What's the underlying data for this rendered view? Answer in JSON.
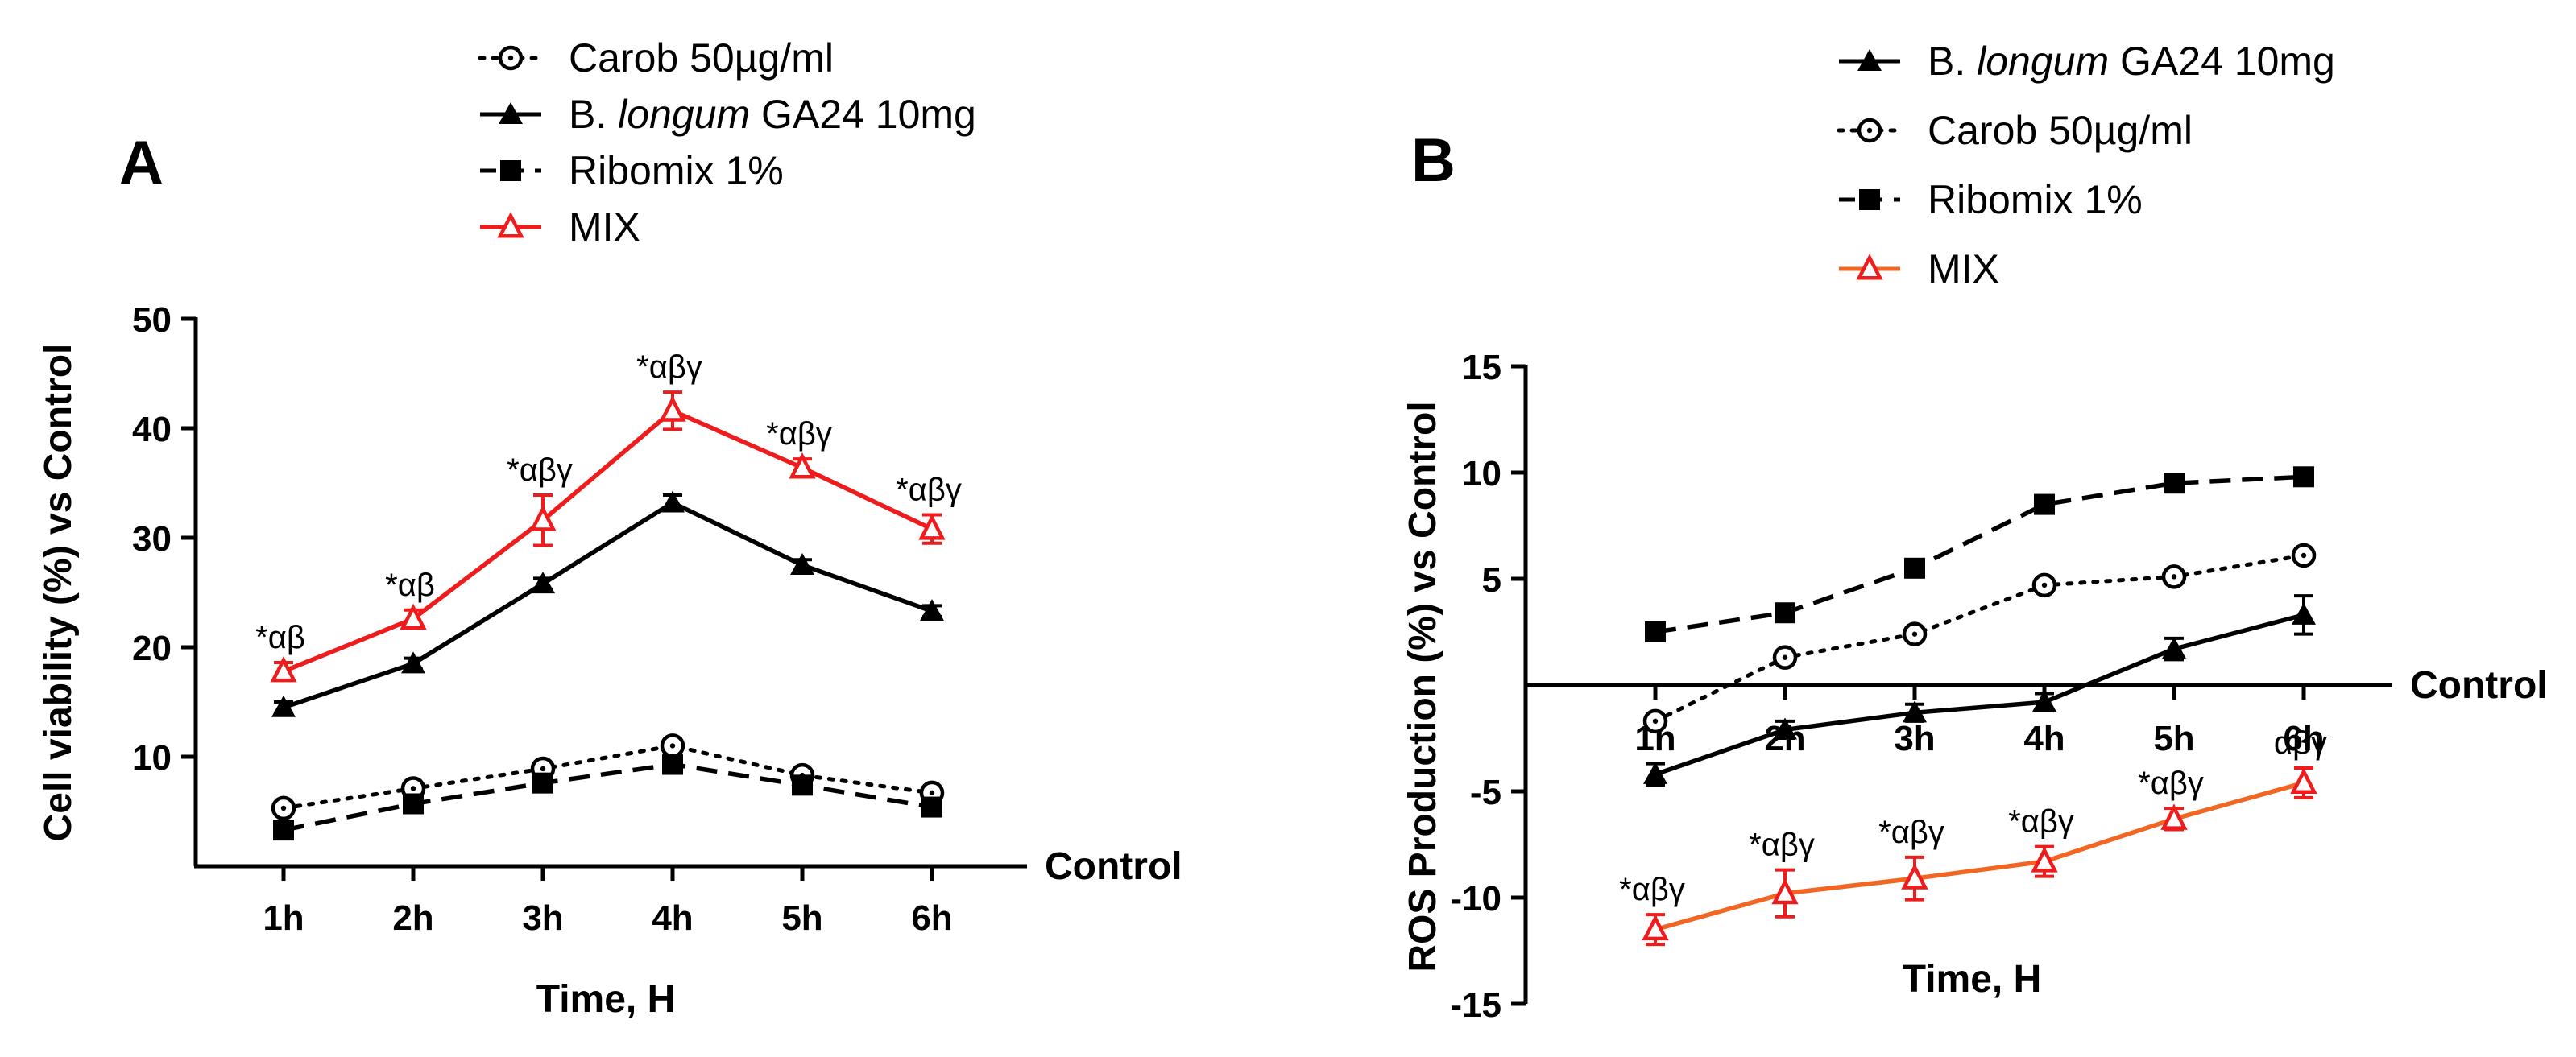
{
  "chart_data": [
    {
      "panel": "A",
      "type": "line",
      "xlabel": "Time, H",
      "ylabel": "Cell viability (%) vs Control",
      "baseline_label": "Control",
      "categories": [
        "1h",
        "2h",
        "3h",
        "4h",
        "5h",
        "6h"
      ],
      "ylim": [
        0,
        50
      ],
      "yticks": [
        "10",
        "20",
        "30",
        "40",
        "50"
      ],
      "yticks_values": [
        10,
        20,
        30,
        40,
        50
      ],
      "legend": {
        "placement": "top-center",
        "items": [
          {
            "name": "Carob 50µg/ml",
            "series": "carob"
          },
          {
            "name_pre": "B. ",
            "name_italic": "longum",
            "name_post": " GA24 10mg",
            "series": "longum"
          },
          {
            "name": "Ribomix 1%",
            "series": "ribomix"
          },
          {
            "name": "MIX",
            "series": "mix"
          }
        ]
      },
      "series": [
        {
          "id": "carob",
          "values": [
            5.3,
            7.1,
            8.9,
            11.0,
            8.3,
            6.7
          ],
          "errors": [
            0.5,
            0.5,
            0.5,
            0.6,
            0.5,
            0.5
          ],
          "marker": "circle",
          "dash": "dotted",
          "color": "#000000"
        },
        {
          "id": "longum",
          "values": [
            14.5,
            18.5,
            25.8,
            33.2,
            27.5,
            23.3
          ],
          "errors": [
            0.5,
            0.5,
            0.5,
            0.7,
            0.5,
            0.5
          ],
          "marker": "triangle",
          "dash": "solid",
          "color": "#000000"
        },
        {
          "id": "ribomix",
          "values": [
            3.3,
            5.7,
            7.6,
            9.3,
            7.4,
            5.4
          ],
          "errors": [
            0.5,
            0.5,
            0.5,
            0.5,
            0.5,
            0.5
          ],
          "marker": "square",
          "dash": "dashed",
          "color": "#000000"
        },
        {
          "id": "mix",
          "values": [
            17.8,
            22.6,
            31.6,
            41.6,
            36.4,
            30.8
          ],
          "errors": [
            0.8,
            0.8,
            2.3,
            1.7,
            0.8,
            1.3
          ],
          "marker": "triangle-open",
          "dash": "solid",
          "color": "#ee1c1c",
          "annotations": [
            "*αβ",
            "*αβ",
            "*αβγ",
            "*αβγ",
            "*αβγ",
            "*αβγ"
          ]
        }
      ]
    },
    {
      "panel": "B",
      "type": "line",
      "xlabel": "Time, H",
      "ylabel": "ROS Production (%) vs Control",
      "baseline_label": "Control",
      "categories": [
        "1h",
        "2h",
        "3h",
        "4h",
        "5h",
        "6h"
      ],
      "ylim": [
        -15,
        15
      ],
      "yticks": [
        "-15",
        "-10",
        "-5",
        "5",
        "10",
        "15"
      ],
      "yticks_values": [
        -15,
        -10,
        -5,
        5,
        10,
        15
      ],
      "legend": {
        "placement": "top-center",
        "items": [
          {
            "name_pre": "B. ",
            "name_italic": "longum",
            "name_post": " GA24 10mg",
            "series": "longum"
          },
          {
            "name": "Carob 50µg/ml",
            "series": "carob"
          },
          {
            "name": "Ribomix 1%",
            "series": "ribomix"
          },
          {
            "name": "MIX",
            "series": "mix"
          }
        ]
      },
      "series": [
        {
          "id": "longum",
          "values": [
            -4.2,
            -2.1,
            -1.3,
            -0.8,
            1.7,
            3.3
          ],
          "errors": [
            0.5,
            0.4,
            0.4,
            0.4,
            0.5,
            0.9
          ],
          "marker": "triangle",
          "dash": "solid",
          "color": "#000000"
        },
        {
          "id": "carob",
          "values": [
            -1.7,
            1.3,
            2.4,
            4.7,
            5.1,
            6.1
          ],
          "errors": [
            0.3,
            0.3,
            0.3,
            0.3,
            0.3,
            0.3
          ],
          "marker": "circle",
          "dash": "dotted",
          "color": "#000000"
        },
        {
          "id": "ribomix",
          "values": [
            2.5,
            3.4,
            5.5,
            8.5,
            9.5,
            9.8
          ],
          "errors": [
            0.3,
            0.3,
            0.3,
            0.3,
            0.3,
            0.3
          ],
          "marker": "square",
          "dash": "dashed",
          "color": "#000000"
        },
        {
          "id": "mix",
          "values": [
            -11.5,
            -9.8,
            -9.1,
            -8.3,
            -6.3,
            -4.6
          ],
          "errors": [
            0.7,
            1.1,
            1.0,
            0.7,
            0.5,
            0.7
          ],
          "marker": "triangle-open",
          "dash": "solid",
          "color": "#f26522",
          "markerColor": "#ee1c1c",
          "annotations": [
            "*αβγ",
            "*αβγ",
            "*αβγ",
            "*αβγ",
            "*αβγ",
            "αβγ"
          ]
        }
      ]
    }
  ]
}
